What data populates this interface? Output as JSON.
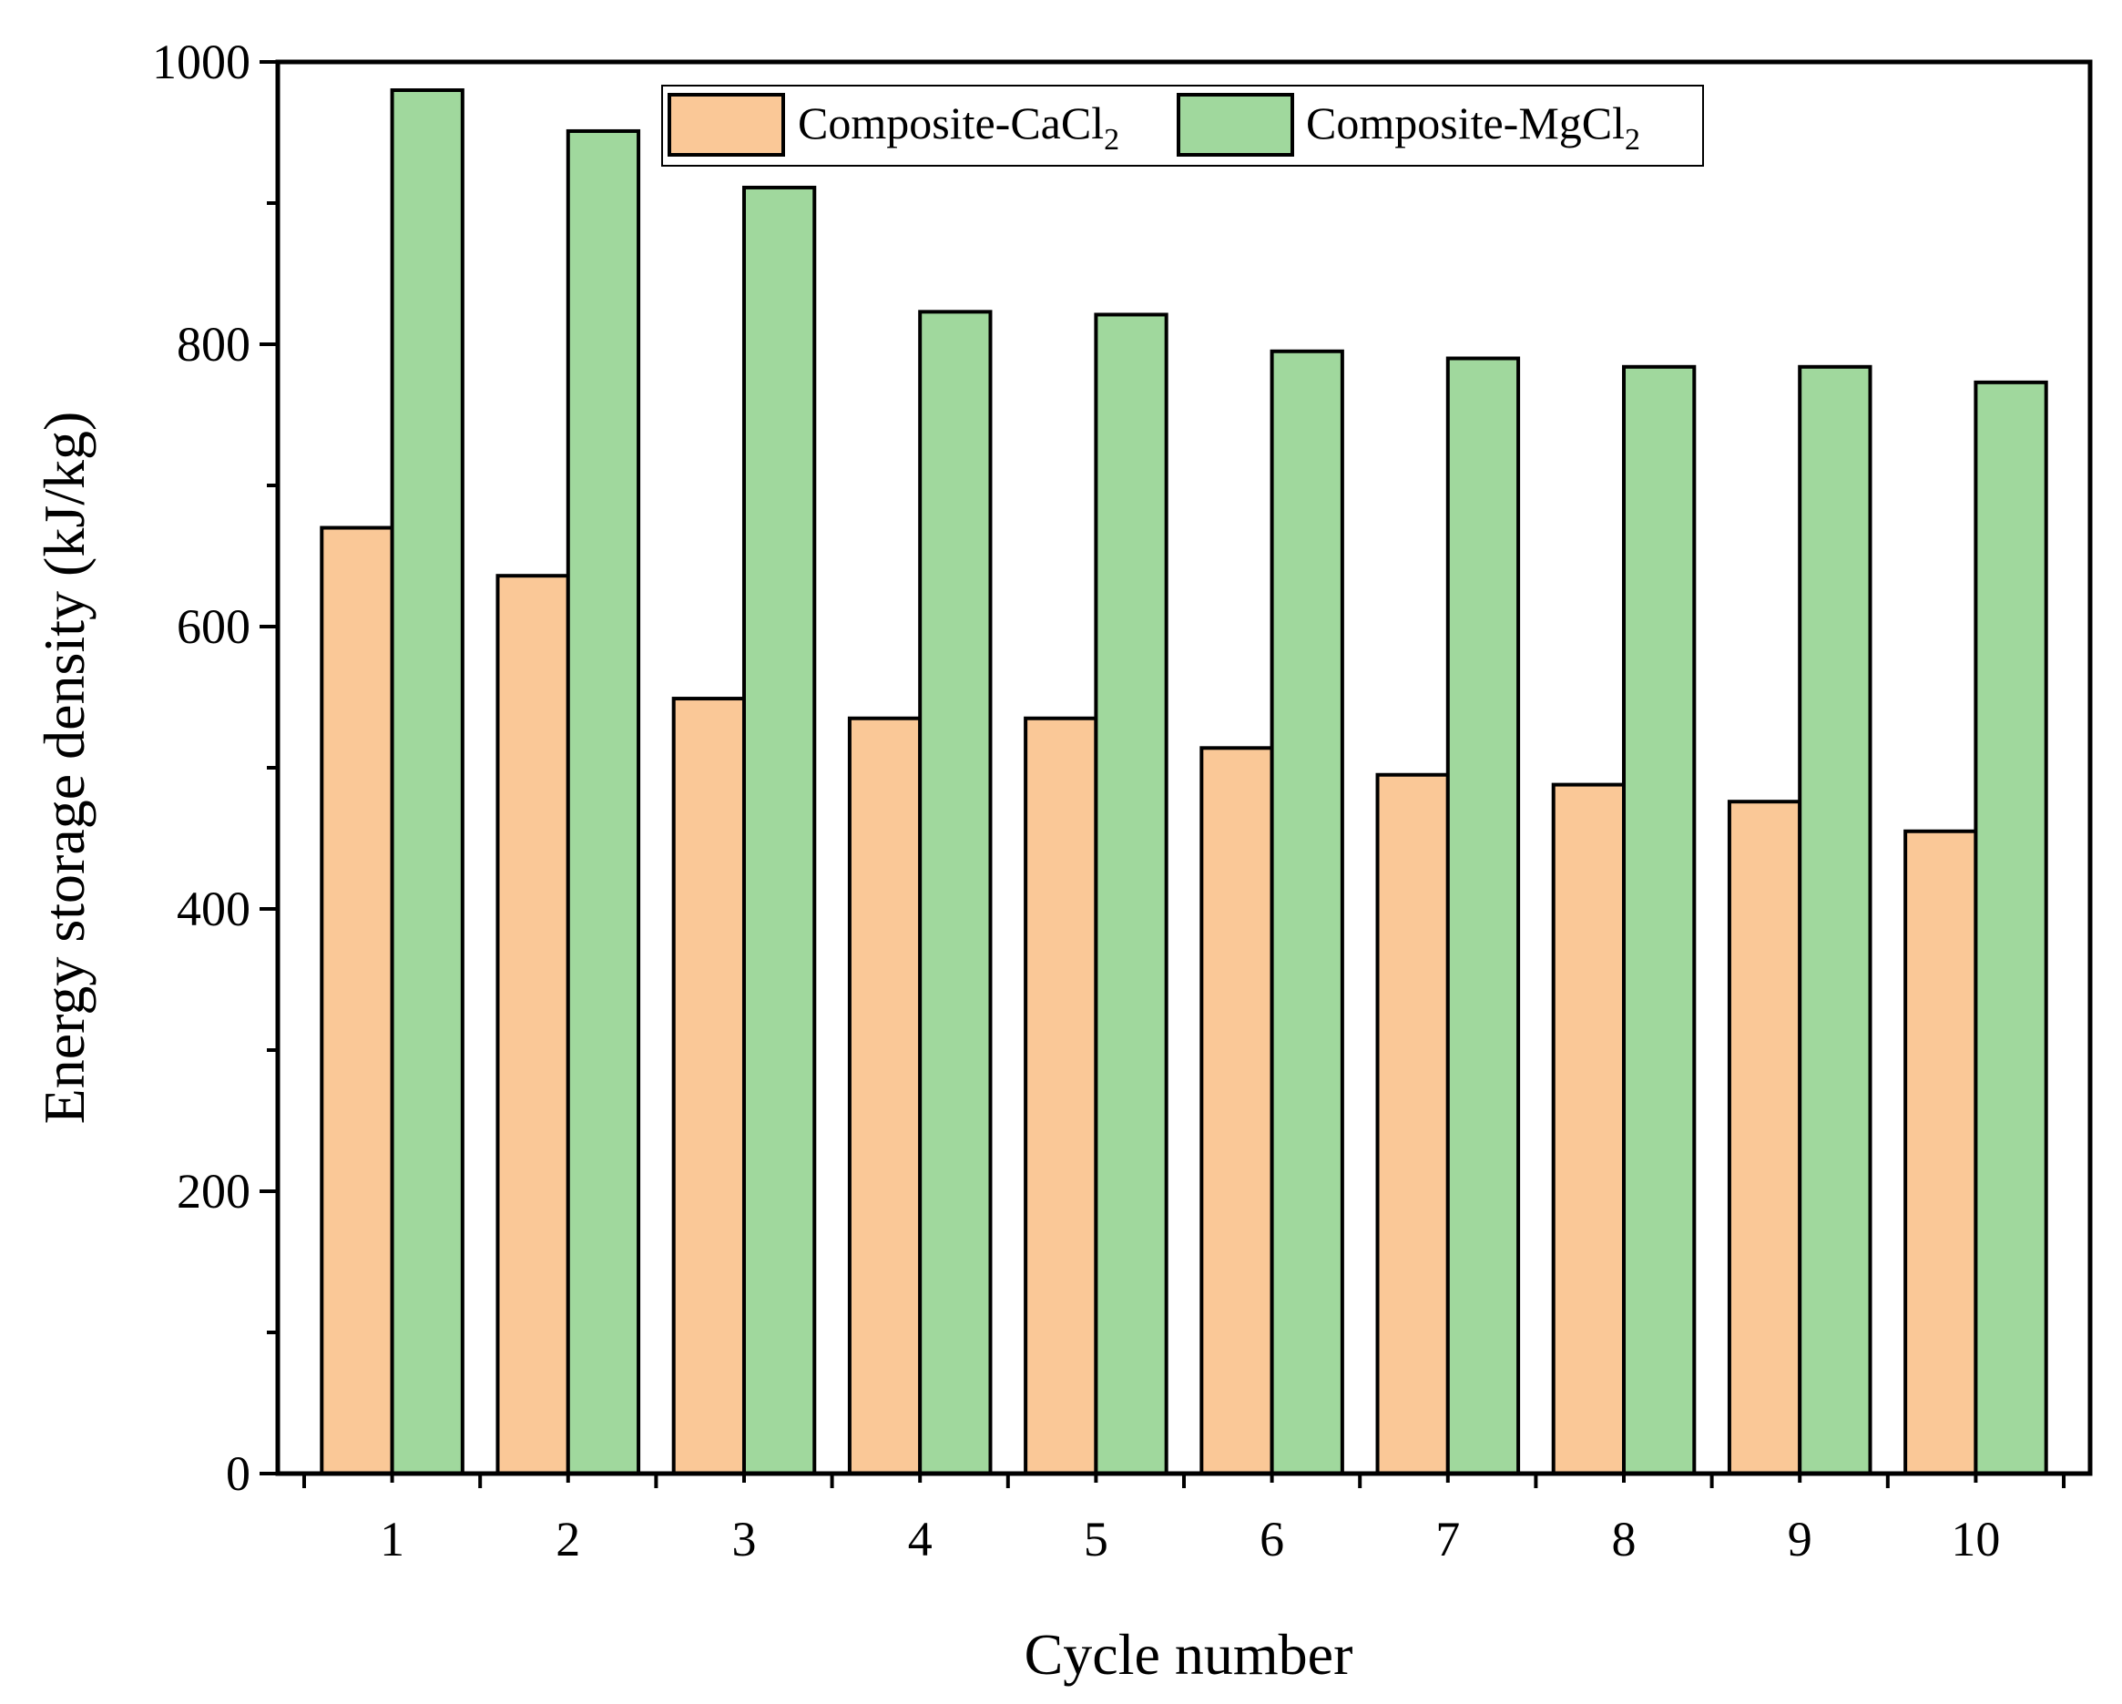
{
  "chart_data": {
    "type": "bar",
    "xlabel": "Cycle number",
    "ylabel": "Energy storage density (kJ/kg)",
    "categories": [
      "1",
      "2",
      "3",
      "4",
      "5",
      "6",
      "7",
      "8",
      "9",
      "10"
    ],
    "ylim": [
      0,
      1000
    ],
    "yticks": [
      0,
      200,
      400,
      600,
      800,
      1000
    ],
    "grid": false,
    "legend_position": "top-center",
    "series": [
      {
        "name": "Composite-CaCl",
        "name_subscript": "2",
        "color": "#FAC897",
        "values": [
          670,
          636,
          549,
          535,
          535,
          514,
          495,
          488,
          476,
          455
        ]
      },
      {
        "name": "Composite-MgCl",
        "name_subscript": "2",
        "color": "#A0D89D",
        "values": [
          980,
          951,
          911,
          823,
          821,
          795,
          790,
          784,
          784,
          773
        ]
      }
    ]
  }
}
